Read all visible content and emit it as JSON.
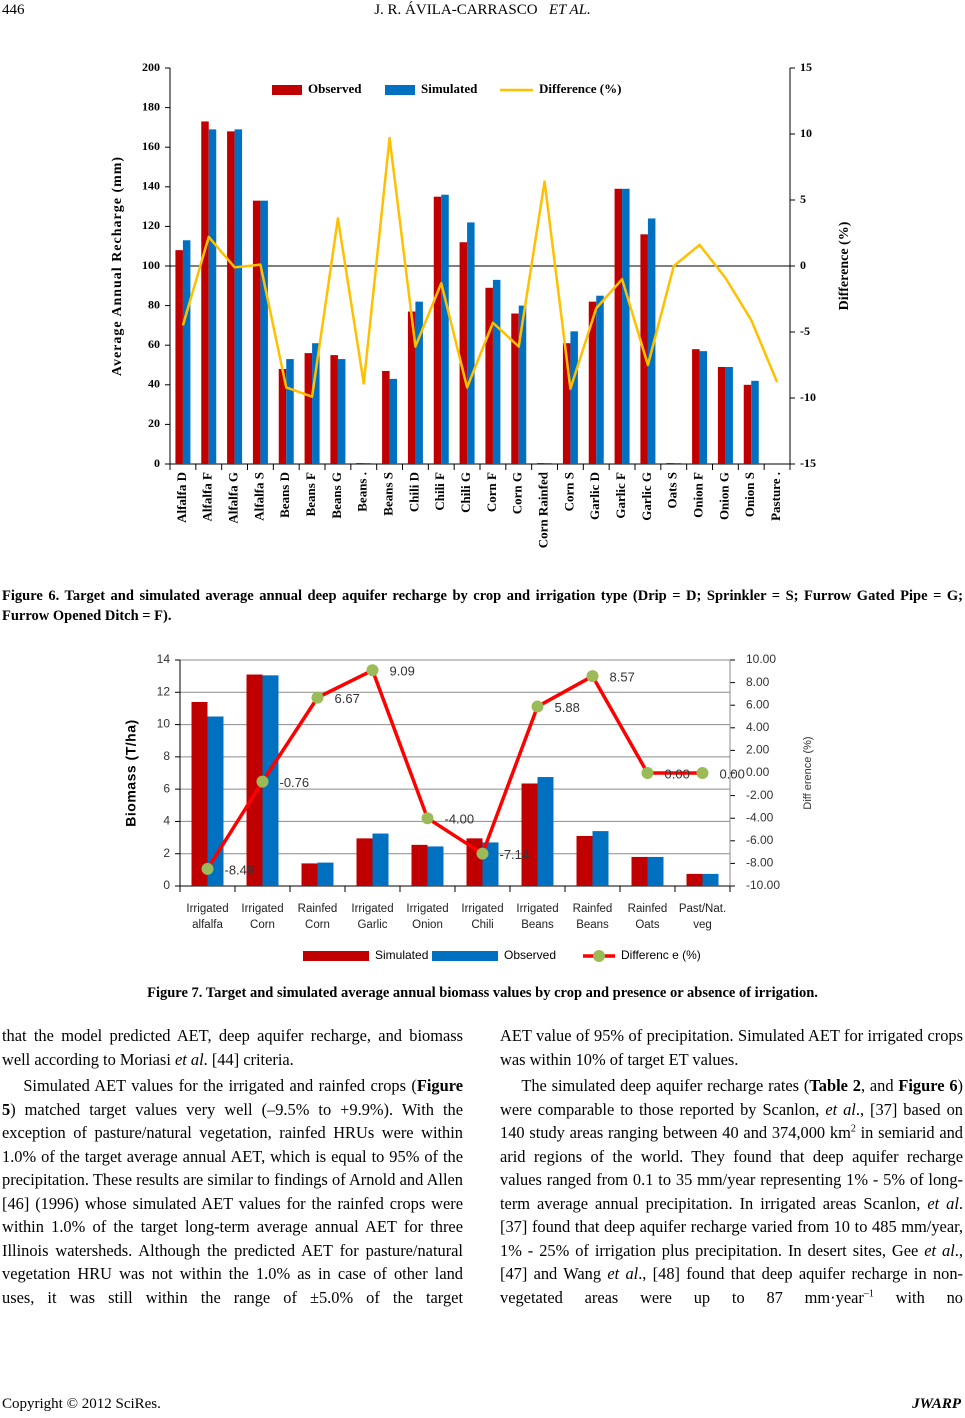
{
  "header": {
    "page_number": "446",
    "running_title": [
      "J. R. ÁVILA-CARRASCO",
      "ET AL."
    ]
  },
  "chart_data": [
    {
      "type": "bar",
      "caption": "Figure 6. Target and simulated average annual deep aquifer recharge by crop and irrigation type (Drip = D; Sprinkler = S; Furrow Gated Pipe = G; Furrow Opened Ditch = F).",
      "categories": [
        "Alfalfa D",
        "Alfalfa F",
        "Alfalfa G",
        "Alfalfa S",
        "Beans D",
        "Beans F",
        "Beans G",
        "Beans .",
        "Beans S",
        "Chili D",
        "Chili F",
        "Chili G",
        "Corn F",
        "Corn G",
        "Corn Rainfed",
        "Corn S",
        "Garlic D",
        "Garlic F",
        "Garlic G",
        "Oats S",
        "Onion F",
        "Onion G",
        "Onion S",
        "Pasture ."
      ],
      "series": [
        {
          "name": "Observed",
          "color": "#c00000",
          "values": [
            108,
            173,
            168,
            133,
            48,
            56,
            55,
            0.5,
            47,
            77,
            135,
            112,
            89,
            76,
            0.5,
            61,
            82,
            139,
            116,
            0.5,
            58,
            49,
            40,
            0
          ]
        },
        {
          "name": "Simulated",
          "color": "#0070c0",
          "values": [
            113,
            169,
            169,
            133,
            53,
            61,
            53,
            0.5,
            43,
            82,
            136,
            122,
            93,
            80,
            0.5,
            67,
            85,
            139,
            124,
            0.5,
            57,
            49,
            42,
            0
          ]
        },
        {
          "name": "Difference (%)",
          "type": "line",
          "axis": "y2",
          "color": "#ffc000",
          "values": [
            -4.5,
            2.2,
            -0.1,
            0.1,
            -9.2,
            -9.9,
            3.6,
            -8.9,
            9.7,
            -6.1,
            -1.3,
            -9.2,
            -4.3,
            -6.1,
            6.4,
            -9.3,
            -3.2,
            -1.0,
            -7.5,
            0,
            1.6,
            -0.9,
            -4.1,
            -8.8
          ]
        }
      ],
      "ylabel": "Average Annual Recharge (mm)",
      "y2label": "Difference (%)",
      "ylim": [
        0,
        200
      ],
      "yticks": [
        0,
        20,
        40,
        60,
        80,
        100,
        120,
        140,
        160,
        180,
        200
      ],
      "y2lim": [
        -15,
        15
      ],
      "y2ticks": [
        -15,
        -10,
        -5,
        0,
        5,
        10,
        15
      ],
      "y2_zero_line": true,
      "grid": false,
      "legend": "top"
    },
    {
      "type": "bar",
      "caption": "Figure 7. Target and simulated average annual biomass values by crop and presence or absence of irrigation.",
      "categories": [
        "Irrigated alfalfa",
        "Irrigated Corn",
        "Rainfed Corn",
        "Irrigated Garlic",
        "Irrigated Onion",
        "Irrigated Chili",
        "Irrigated Beans",
        "Rainfed Beans",
        "Rainfed Oats",
        "Past/Nat. veg"
      ],
      "series": [
        {
          "name": "Simulated",
          "color": "#c00000",
          "values": [
            11.4,
            13.1,
            1.4,
            2.95,
            2.55,
            2.95,
            6.35,
            3.1,
            1.8,
            0.75
          ]
        },
        {
          "name": "Observed",
          "color": "#0070c0",
          "values": [
            10.5,
            13.05,
            1.45,
            3.25,
            2.45,
            2.7,
            6.75,
            3.4,
            1.8,
            0.75
          ]
        },
        {
          "name": "Differenc e (%)",
          "type": "line",
          "axis": "y2",
          "color": "#ff0000",
          "marker_color": "#9bbb59",
          "values": [
            -8.49,
            -0.76,
            6.67,
            9.09,
            -4,
            -7.14,
            5.88,
            8.57,
            0,
            0
          ],
          "value_labels": [
            "-8.49",
            "-0.76",
            "6.67",
            "9.09",
            "-4.00",
            "-7.14",
            "5.88",
            "8.57",
            "0.00",
            "0.00"
          ]
        }
      ],
      "ylabel": "Biomass (T/ha)",
      "y2label": "Diff erence (%)",
      "ylim": [
        0,
        14
      ],
      "yticks": [
        0,
        2,
        4,
        6,
        8,
        10,
        12,
        14
      ],
      "y2lim": [
        -10,
        10
      ],
      "y2ticks": [
        {
          "value": -10,
          "label": "-10.00"
        },
        {
          "value": -8,
          "label": "-8.00"
        },
        {
          "value": -6,
          "label": "-6.00"
        },
        {
          "value": -4,
          "label": "-4.00"
        },
        {
          "value": -2,
          "label": "-2.00"
        },
        {
          "value": 0,
          "label": "0.00"
        },
        {
          "value": 2,
          "label": "2.00"
        },
        {
          "value": 4,
          "label": "4.00"
        },
        {
          "value": 6,
          "label": "6.00"
        },
        {
          "value": 8,
          "label": "8.00"
        },
        {
          "value": 10,
          "label": "10.00"
        }
      ],
      "grid": true,
      "legend": "bottom"
    }
  ],
  "body": {
    "left": [
      [
        "that the model predicted AET, deep aquifer recharge, and biomass well according to Moriasi ",
        "et al",
        ". [44] criteria."
      ],
      [
        "Simulated AET values for the irrigated and rainfed crops (",
        "Figure 5",
        ") matched target values very well (–9.5% to +9.9%). With the exception of pasture/natural vegetation, rainfed HRUs were within 1.0% of the target average annual AET, which is equal to 95% of the precipitation. These results are similar to findings of Arnold and Allen [46] (1996) whose simulated AET values for the rainfed crops were within 1.0% of the target long-term average annual AET for three Illinois watersheds. Although the predicted AET for pasture/natural vegetation HRU was not within the 1.0% as in case of other land uses, it was still within the range of ±5.0% of the target"
      ]
    ],
    "right": [
      [
        "AET value of 95% of precipitation. Simulated AET for irrigated crops was within 10% of target ET values."
      ],
      [
        "The simulated deep aquifer recharge rates (",
        "Table 2",
        ", and ",
        "Figure 6",
        ") were comparable to those reported by Scanlon, ",
        "et al",
        "., [37] based on 140 study areas ranging between 40 and 374,000 km",
        "2",
        " in semiarid and arid regions of the world. They found that deep aquifer recharge values ranged from 0.1 to 35 mm/year representing 1% - 5% of long-term average annual precipitation. In irrigated areas Scanlon, ",
        "et al",
        ". [37] found that deep aquifer recharge varied from 10 to 485 mm/year, 1% - 25% of irrigation plus precipitation. In desert sites, Gee ",
        "et al",
        "., [47] and Wang ",
        "et al",
        "., [48] found that deep aquifer recharge in non-vegetated areas were up to 87 mm·year",
        "–1",
        " with no"
      ]
    ]
  },
  "footer": {
    "copyright": "Copyright © 2012 SciRes.",
    "journal": "JWARP"
  }
}
